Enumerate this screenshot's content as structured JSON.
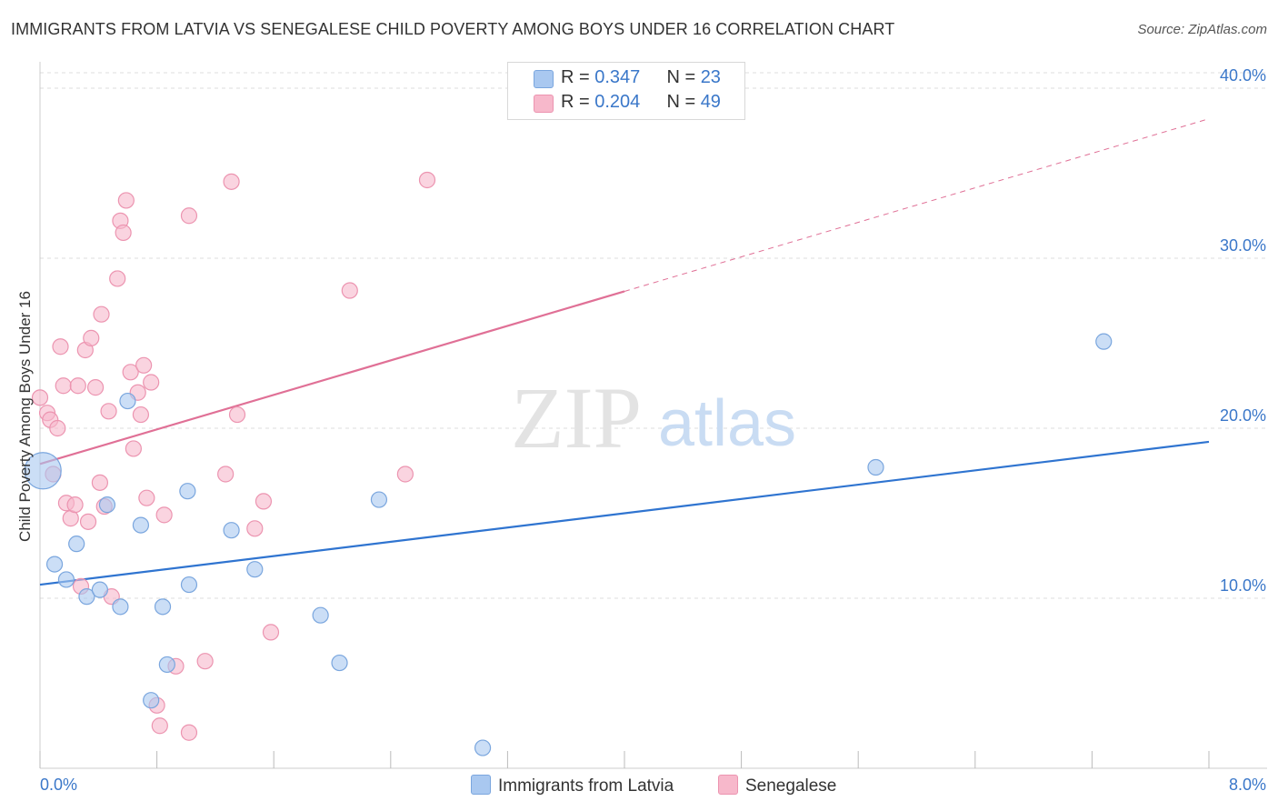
{
  "title": "IMMIGRANTS FROM LATVIA VS SENEGALESE CHILD POVERTY AMONG BOYS UNDER 16 CORRELATION CHART",
  "source": "Source: ZipAtlas.com",
  "watermark": {
    "zip": "ZIP",
    "atlas": "atlas"
  },
  "legend": {
    "rows": [
      {
        "r_label": "R = ",
        "r_value": "0.347",
        "n_label": "N = ",
        "n_value": "23",
        "color": "#a9c8f0"
      },
      {
        "r_label": "R = ",
        "r_value": "0.204",
        "n_label": "N = ",
        "n_value": "49",
        "color": "#f7b8cb"
      }
    ]
  },
  "bottom_legend": {
    "latvia": "Immigrants from Latvia",
    "senegalese": "Senegalese"
  },
  "colors": {
    "latvia_fill": "#a9c8f0",
    "latvia_stroke": "#7aa6de",
    "latvia_line": "#2f74d0",
    "senegalese_fill": "#f7b8cb",
    "senegalese_stroke": "#ec94b0",
    "senegalese_line": "#e07096",
    "axis_text": "#3a77c9",
    "grid": "#dddddd"
  },
  "chart_data": {
    "type": "scatter",
    "title": "IMMIGRANTS FROM LATVIA VS SENEGALESE CHILD POVERTY AMONG BOYS UNDER 16 CORRELATION CHART",
    "xlabel": "",
    "ylabel": "Child Poverty Among Boys Under 16",
    "xlim": [
      0,
      8
    ],
    "ylim": [
      0,
      40
    ],
    "x_tick_labels": [
      "0.0%",
      "8.0%"
    ],
    "y_ticks": [
      10,
      20,
      30,
      40
    ],
    "y_tick_labels": [
      "10.0%",
      "20.0%",
      "30.0%",
      "40.0%"
    ],
    "grid": true,
    "legend_position": "top-center",
    "series": [
      {
        "name": "Immigrants from Latvia",
        "points": [
          [
            0.02,
            17.5
          ],
          [
            0.1,
            12.0
          ],
          [
            0.18,
            11.1
          ],
          [
            0.25,
            13.2
          ],
          [
            0.32,
            10.1
          ],
          [
            0.41,
            10.5
          ],
          [
            0.46,
            15.5
          ],
          [
            0.55,
            9.5
          ],
          [
            0.6,
            21.6
          ],
          [
            0.69,
            14.3
          ],
          [
            0.84,
            9.5
          ],
          [
            0.87,
            6.1
          ],
          [
            0.76,
            4.0
          ],
          [
            1.01,
            16.3
          ],
          [
            1.02,
            10.8
          ],
          [
            1.31,
            14.0
          ],
          [
            1.47,
            11.7
          ],
          [
            1.92,
            9.0
          ],
          [
            2.05,
            6.2
          ],
          [
            2.32,
            15.8
          ],
          [
            3.03,
            1.2
          ],
          [
            5.72,
            17.7
          ],
          [
            7.28,
            25.1
          ]
        ],
        "trend": {
          "x": [
            0,
            8
          ],
          "y": [
            10.8,
            19.2
          ],
          "dashed_from_x": null
        }
      },
      {
        "name": "Senegalese",
        "points": [
          [
            0.0,
            21.8
          ],
          [
            0.05,
            20.9
          ],
          [
            0.07,
            20.5
          ],
          [
            0.09,
            17.3
          ],
          [
            0.12,
            20.0
          ],
          [
            0.14,
            24.8
          ],
          [
            0.16,
            22.5
          ],
          [
            0.18,
            15.6
          ],
          [
            0.21,
            14.7
          ],
          [
            0.24,
            15.5
          ],
          [
            0.26,
            22.5
          ],
          [
            0.28,
            10.7
          ],
          [
            0.31,
            24.6
          ],
          [
            0.33,
            14.5
          ],
          [
            0.35,
            25.3
          ],
          [
            0.38,
            22.4
          ],
          [
            0.41,
            16.8
          ],
          [
            0.42,
            26.7
          ],
          [
            0.44,
            15.4
          ],
          [
            0.47,
            21.0
          ],
          [
            0.49,
            10.1
          ],
          [
            0.53,
            28.8
          ],
          [
            0.55,
            32.2
          ],
          [
            0.57,
            31.5
          ],
          [
            0.59,
            33.4
          ],
          [
            0.62,
            23.3
          ],
          [
            0.64,
            18.8
          ],
          [
            0.67,
            22.1
          ],
          [
            0.69,
            20.8
          ],
          [
            0.71,
            23.7
          ],
          [
            0.73,
            15.9
          ],
          [
            0.76,
            22.7
          ],
          [
            0.8,
            3.7
          ],
          [
            0.82,
            2.5
          ],
          [
            0.85,
            14.9
          ],
          [
            0.93,
            6.0
          ],
          [
            1.02,
            2.1
          ],
          [
            1.02,
            32.5
          ],
          [
            1.13,
            6.3
          ],
          [
            1.27,
            17.3
          ],
          [
            1.31,
            34.5
          ],
          [
            1.35,
            20.8
          ],
          [
            1.47,
            14.1
          ],
          [
            1.53,
            15.7
          ],
          [
            1.58,
            8.0
          ],
          [
            2.12,
            28.1
          ],
          [
            2.5,
            17.3
          ],
          [
            2.65,
            34.6
          ],
          [
            3.28,
            40.0
          ]
        ],
        "trend": {
          "x": [
            0,
            8
          ],
          "y": [
            17.9,
            38.2
          ],
          "dashed_from_x": 4.0
        }
      }
    ]
  }
}
